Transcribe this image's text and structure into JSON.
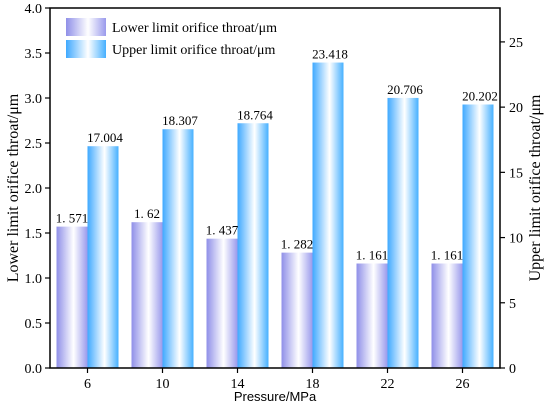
{
  "chart_data": {
    "type": "bar",
    "categories": [
      "6",
      "10",
      "14",
      "18",
      "22",
      "26"
    ],
    "series": [
      {
        "name": "Lower limit orifice throat/μm",
        "axis": "left",
        "values": [
          1.571,
          1.62,
          1.437,
          1.282,
          1.161,
          1.161
        ],
        "labels": [
          "1. 571",
          "1. 62",
          "1. 437",
          "1. 282",
          "1. 161",
          "1. 161"
        ],
        "color": "#b8b8f0"
      },
      {
        "name": "Upper limit orifice throat/μm",
        "axis": "right",
        "values": [
          17.004,
          18.307,
          18.764,
          23.418,
          20.706,
          20.202
        ],
        "labels": [
          "17.004",
          "18.307",
          "18.764",
          "23.418",
          "20.706",
          "20.202"
        ],
        "color": "#66c4ff"
      }
    ],
    "xlabel": "Pressure/MPa",
    "ylabel_left": "Lower limit orifice throat/μm",
    "ylabel_right": "Upper limit orifice throat/μm",
    "ylim_left": [
      0,
      4.0
    ],
    "ylim_right": [
      0,
      27.6
    ],
    "yticks_left": [
      "0.0",
      "0.5",
      "1.0",
      "1.5",
      "2.0",
      "2.5",
      "3.0",
      "3.5",
      "4.0"
    ],
    "yticks_right": [
      "0",
      "5",
      "10",
      "15",
      "20",
      "25"
    ],
    "grid": false,
    "legend_position": "top-left"
  }
}
